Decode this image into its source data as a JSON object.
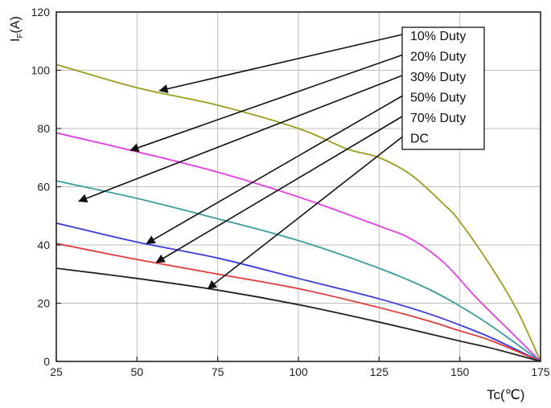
{
  "chart_data": {
    "type": "line",
    "xlabel": "Tc(℃)",
    "ylabel": {
      "main": "I",
      "sub": "F",
      "rest": "(A)"
    },
    "xlim": [
      25,
      175
    ],
    "ylim": [
      0,
      120
    ],
    "xticks": [
      25,
      50,
      75,
      100,
      125,
      150,
      175
    ],
    "yticks": [
      0,
      20,
      40,
      60,
      80,
      100,
      120
    ],
    "grid": true,
    "legend_placement": "top-right",
    "series": [
      {
        "name": "10% Duty",
        "color": "#9c9c1e",
        "x": [
          25,
          50,
          75,
          100,
          115,
          125,
          135,
          145,
          150,
          160,
          168,
          175
        ],
        "y": [
          102,
          94,
          88,
          80,
          73,
          70,
          64,
          54,
          48,
          32,
          17,
          0
        ],
        "arrow_at": [
          57,
          93
        ]
      },
      {
        "name": "20% Duty",
        "color": "#e33ce3",
        "x": [
          25,
          50,
          75,
          100,
          125,
          135,
          145,
          155,
          165,
          175
        ],
        "y": [
          78.5,
          72,
          65,
          56.5,
          46.5,
          42,
          34,
          22,
          11,
          0
        ],
        "arrow_at": [
          48,
          72.5
        ]
      },
      {
        "name": "30% Duty",
        "color": "#3a9c9c",
        "x": [
          25,
          50,
          75,
          100,
          125,
          140,
          150,
          160,
          175
        ],
        "y": [
          62,
          56,
          49,
          41.5,
          32,
          25,
          19,
          12,
          0
        ],
        "arrow_at": [
          32,
          55
        ]
      },
      {
        "name": "50% Duty",
        "color": "#3a3ae0",
        "x": [
          25,
          50,
          75,
          100,
          125,
          140,
          150,
          160,
          175
        ],
        "y": [
          47.5,
          41,
          35.5,
          28.5,
          21.5,
          16.5,
          12.5,
          8,
          0
        ],
        "arrow_at": [
          53,
          40.5
        ]
      },
      {
        "name": "70% Duty",
        "color": "#e03a3a",
        "x": [
          25,
          50,
          75,
          100,
          125,
          140,
          150,
          160,
          175
        ],
        "y": [
          40.5,
          35,
          30,
          25,
          18.5,
          14,
          10.5,
          7,
          0
        ],
        "arrow_at": [
          56,
          34
        ]
      },
      {
        "name": "DC",
        "color": "#222222",
        "x": [
          25,
          50,
          75,
          100,
          125,
          150,
          160,
          175
        ],
        "y": [
          32,
          28.5,
          24.5,
          19.5,
          13.5,
          7,
          4.5,
          0
        ],
        "arrow_at": [
          72,
          25
        ]
      }
    ]
  }
}
